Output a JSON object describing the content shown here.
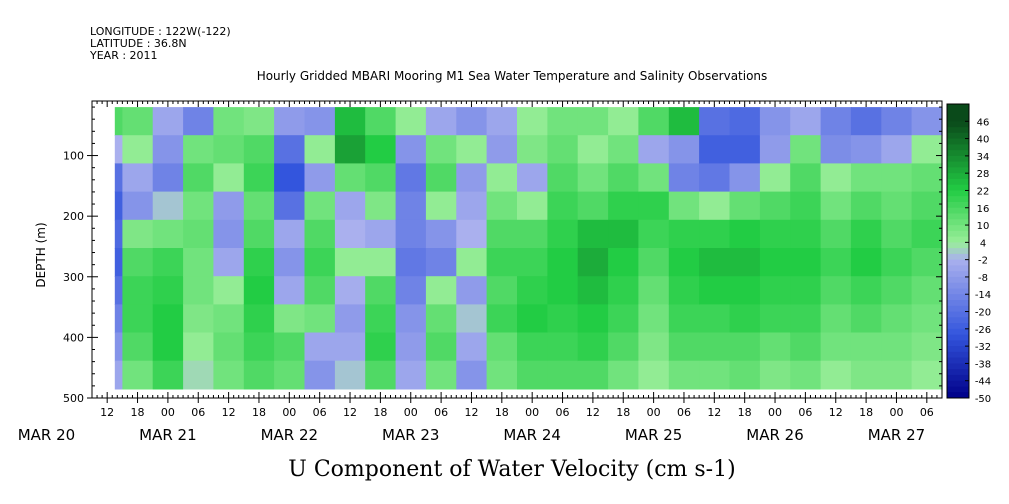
{
  "header": {
    "longitude": "LONGITUDE : 122W(-122)",
    "latitude": "LATITUDE : 36.8N",
    "year": "YEAR : 2011"
  },
  "chart_data": {
    "type": "heatmap",
    "title": "Hourly Gridded MBARI Mooring M1 Sea Water Temperature and Salinity Observations",
    "xlabel": "U Component of Water Velocity (cm s-1)",
    "ylabel": "DEPTH (m)",
    "y_ticks": [
      100,
      200,
      300,
      400,
      500
    ],
    "ylim": [
      500,
      10
    ],
    "x_hour_ticks": [
      "12",
      "18",
      "00",
      "06",
      "12",
      "18",
      "00",
      "06",
      "12",
      "18",
      "00",
      "06",
      "12",
      "18",
      "00",
      "06",
      "12",
      "18",
      "00",
      "06",
      "12",
      "18",
      "00",
      "06",
      "12",
      "18",
      "00",
      "06"
    ],
    "x_day_labels": [
      "MAR 20",
      "MAR 21",
      "MAR 22",
      "MAR 23",
      "MAR 24",
      "MAR 25",
      "MAR 26",
      "MAR 27"
    ],
    "colorbar": {
      "labels": [
        "46",
        "40",
        "34",
        "28",
        "22",
        "16",
        "10",
        "4",
        "-2",
        "-8",
        "-14",
        "-20",
        "-26",
        "-32",
        "-38",
        "-44",
        "-50"
      ],
      "range": [
        -50,
        52
      ],
      "colors": {
        "strong_positive": "#0a4a1a",
        "positive": "#22cc44",
        "weak_positive": "#99ee99",
        "weak_negative": "#aab0ee",
        "negative": "#3355dd",
        "strong_negative": "#000088"
      }
    },
    "time_start": "2011-03-20T09:00",
    "time_end": "2011-03-27T09:00",
    "depth_range": [
      20,
      485
    ],
    "columns": [
      {
        "time": "2011-03-20T12:00",
        "v": [
          15,
          -2,
          -20,
          -25,
          -22,
          -25,
          -20,
          -15,
          -10,
          -5
        ]
      },
      {
        "time": "2011-03-20T18:00",
        "v": [
          12,
          5,
          -5,
          -10,
          8,
          15,
          18,
          18,
          15,
          10
        ]
      },
      {
        "time": "2011-03-21T00:00",
        "v": [
          -5,
          -10,
          -15,
          0,
          10,
          18,
          20,
          22,
          22,
          18
        ]
      },
      {
        "time": "2011-03-21T06:00",
        "v": [
          -15,
          10,
          15,
          10,
          12,
          10,
          10,
          8,
          5,
          2
        ]
      },
      {
        "time": "2011-03-21T12:00",
        "v": [
          10,
          12,
          5,
          -8,
          -10,
          -5,
          5,
          10,
          12,
          10
        ]
      },
      {
        "time": "2011-03-21T18:00",
        "v": [
          8,
          15,
          18,
          12,
          15,
          20,
          22,
          20,
          18,
          15
        ]
      },
      {
        "time": "2011-03-22T00:00",
        "v": [
          -8,
          -20,
          -28,
          -20,
          -5,
          -10,
          -5,
          8,
          15,
          12
        ]
      },
      {
        "time": "2011-03-22T06:00",
        "v": [
          -10,
          5,
          -8,
          10,
          15,
          18,
          15,
          10,
          -5,
          -10
        ]
      },
      {
        "time": "2011-03-22T12:00",
        "v": [
          25,
          30,
          12,
          -5,
          -2,
          5,
          -3,
          -8,
          -5,
          0
        ]
      },
      {
        "time": "2011-03-22T18:00",
        "v": [
          15,
          22,
          15,
          8,
          -5,
          5,
          15,
          18,
          20,
          15
        ]
      },
      {
        "time": "2011-03-23T00:00",
        "v": [
          5,
          -10,
          -18,
          -15,
          -15,
          -18,
          -15,
          -10,
          -8,
          -5
        ]
      },
      {
        "time": "2011-03-23T06:00",
        "v": [
          -5,
          10,
          15,
          5,
          -10,
          -15,
          5,
          12,
          15,
          10
        ]
      },
      {
        "time": "2011-03-23T12:00",
        "v": [
          -10,
          5,
          -8,
          -5,
          -2,
          5,
          -8,
          0,
          -5,
          -10
        ]
      },
      {
        "time": "2011-03-23T18:00",
        "v": [
          -5,
          -8,
          5,
          10,
          15,
          18,
          15,
          18,
          12,
          10
        ]
      },
      {
        "time": "2011-03-24T00:00",
        "v": [
          5,
          8,
          -5,
          5,
          15,
          18,
          20,
          22,
          18,
          15
        ]
      },
      {
        "time": "2011-03-24T06:00",
        "v": [
          10,
          12,
          15,
          18,
          20,
          22,
          22,
          20,
          18,
          15
        ]
      },
      {
        "time": "2011-03-24T12:00",
        "v": [
          10,
          5,
          10,
          15,
          25,
          28,
          25,
          22,
          20,
          15
        ]
      },
      {
        "time": "2011-03-24T18:00",
        "v": [
          5,
          10,
          15,
          20,
          25,
          22,
          20,
          18,
          15,
          10
        ]
      },
      {
        "time": "2011-03-25T00:00",
        "v": [
          15,
          -5,
          10,
          20,
          18,
          15,
          12,
          10,
          8,
          5
        ]
      },
      {
        "time": "2011-03-25T06:00",
        "v": [
          25,
          -10,
          -15,
          10,
          20,
          22,
          20,
          18,
          15,
          10
        ]
      },
      {
        "time": "2011-03-25T12:00",
        "v": [
          -20,
          -25,
          -18,
          5,
          20,
          25,
          22,
          18,
          15,
          10
        ]
      },
      {
        "time": "2011-03-25T18:00",
        "v": [
          -22,
          -25,
          -10,
          12,
          22,
          25,
          22,
          20,
          15,
          12
        ]
      },
      {
        "time": "2011-03-26T00:00",
        "v": [
          -10,
          -8,
          5,
          15,
          20,
          22,
          20,
          18,
          12,
          8
        ]
      },
      {
        "time": "2011-03-26T06:00",
        "v": [
          -5,
          10,
          15,
          18,
          20,
          22,
          20,
          18,
          15,
          10
        ]
      },
      {
        "time": "2011-03-26T12:00",
        "v": [
          -15,
          -12,
          5,
          10,
          15,
          18,
          15,
          12,
          10,
          5
        ]
      },
      {
        "time": "2011-03-26T18:00",
        "v": [
          -20,
          -10,
          10,
          15,
          20,
          22,
          18,
          15,
          10,
          8
        ]
      },
      {
        "time": "2011-03-27T00:00",
        "v": [
          -15,
          -5,
          10,
          12,
          15,
          18,
          15,
          12,
          10,
          8
        ]
      },
      {
        "time": "2011-03-27T06:00",
        "v": [
          -10,
          5,
          12,
          15,
          18,
          15,
          12,
          10,
          8,
          5
        ]
      }
    ]
  }
}
